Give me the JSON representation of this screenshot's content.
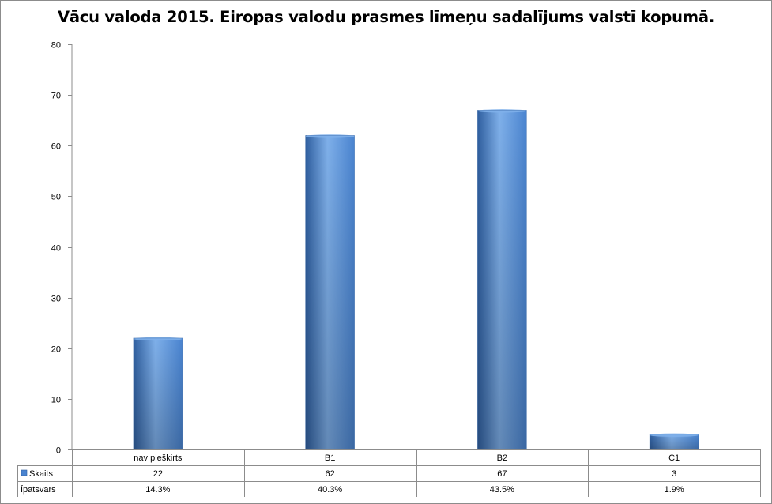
{
  "chart_data": {
    "type": "bar",
    "title": "Vācu valoda 2015. Eiropas valodu prasmes līmeņu sadalījums valstī kopumā.",
    "categories": [
      "nav pieškirts",
      "B1",
      "B2",
      "C1"
    ],
    "series": [
      {
        "name": "Skaits",
        "values": [
          22,
          62,
          67,
          3
        ]
      }
    ],
    "table_rows": [
      {
        "label": "Skaits",
        "has_legend_key": true,
        "values": [
          "22",
          "62",
          "67",
          "3"
        ]
      },
      {
        "label": "Īpatsvars",
        "has_legend_key": false,
        "values": [
          "14.3%",
          "40.3%",
          "43.5%",
          "1.9%"
        ]
      }
    ],
    "ylim": [
      0,
      80
    ],
    "yticks": [
      0,
      10,
      20,
      30,
      40,
      50,
      60,
      70,
      80
    ],
    "grid": false,
    "bar_color": "#4a84d0",
    "bar_dark": "#2f5fa0",
    "bar_light": "#7fb0ea"
  }
}
